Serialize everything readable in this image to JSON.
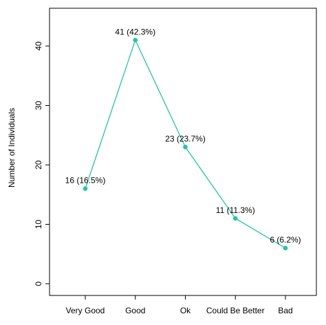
{
  "chart_data": {
    "type": "line",
    "title": "",
    "xlabel": "",
    "ylabel": "Number of Individuals",
    "categories": [
      "Very Good",
      "Good",
      "Ok",
      "Could Be Better",
      "Bad"
    ],
    "values": [
      16,
      41,
      23,
      11,
      6
    ],
    "data_labels": [
      "16 (16.5%)",
      "41 (42.3%)",
      "23 (23.7%)",
      "11 (11.3%)",
      "6 (6.2%)"
    ],
    "y_ticks": [
      0,
      10,
      20,
      30,
      40
    ],
    "ylim": [
      -2,
      46
    ],
    "grid": false,
    "legend": "none",
    "colors": {
      "series": "#1ec8a0",
      "axis": "#000000"
    }
  }
}
